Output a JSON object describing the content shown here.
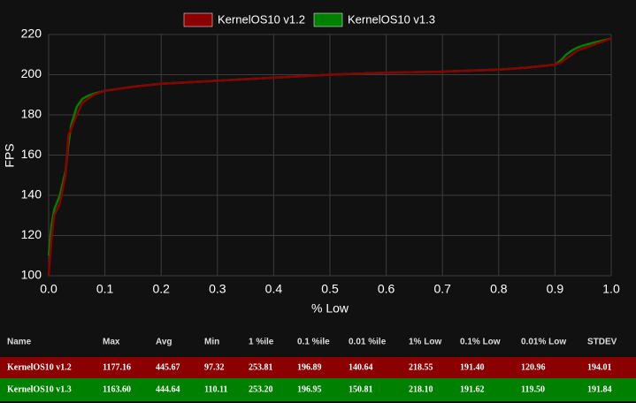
{
  "chart_data": {
    "type": "line",
    "x_label": "% Low",
    "y_label": "FPS",
    "x": [
      0,
      0.005,
      0.01,
      0.02,
      0.03,
      0.035,
      0.04,
      0.05,
      0.06,
      0.07,
      0.08,
      0.1,
      0.15,
      0.2,
      0.3,
      0.4,
      0.5,
      0.6,
      0.7,
      0.8,
      0.85,
      0.9,
      0.91,
      0.92,
      0.93,
      0.94,
      0.95,
      0.97,
      1.0
    ],
    "series": [
      {
        "name": "KernelOS10 v1.2",
        "color": "#8b0000",
        "values": [
          100,
          118,
          130,
          136,
          150,
          170,
          173,
          180,
          186,
          188,
          190,
          192,
          194,
          195.5,
          197,
          198.5,
          200,
          201,
          201.5,
          202.5,
          203.5,
          205,
          206,
          208,
          210,
          212,
          213,
          215,
          218
        ]
      },
      {
        "name": "KernelOS10 v1.3",
        "color": "#008000",
        "values": [
          110,
          125,
          133,
          140,
          152,
          165,
          175,
          184,
          188,
          189.5,
          190.5,
          192,
          194,
          195.5,
          197,
          198.5,
          200,
          201,
          201.5,
          202.5,
          203.5,
          205,
          207,
          210,
          212,
          213.5,
          214.5,
          216,
          218
        ]
      }
    ],
    "xlim": [
      0,
      1
    ],
    "ylim": [
      100,
      220
    ],
    "xticks": [
      {
        "value": 0,
        "label": "0.0"
      },
      0.1,
      0.2,
      0.3,
      0.4,
      0.5,
      0.6,
      0.7,
      0.8,
      0.9,
      {
        "value": 1,
        "label": "1.0"
      }
    ],
    "yticks": [
      100,
      120,
      140,
      160,
      180,
      200,
      220
    ],
    "grid": true,
    "legend": "top"
  },
  "table": {
    "header": [
      "Name",
      "Max",
      "Avg",
      "Min",
      "1 %ile",
      "0.1 %ile",
      "0.01 %ile",
      "1% Low",
      "0.1% Low",
      "0.01% Low",
      "STDEV"
    ],
    "rows": [
      [
        "KernelOS10 v1.2",
        "1177.16",
        "445.67",
        "97.32",
        "253.81",
        "196.89",
        "140.64",
        "218.55",
        "191.40",
        "120.96",
        "194.01"
      ],
      [
        "KernelOS10 v1.3",
        "1163.60",
        "444.64",
        "110.11",
        "253.20",
        "196.95",
        "150.81",
        "218.10",
        "191.62",
        "119.50",
        "191.84"
      ]
    ]
  }
}
